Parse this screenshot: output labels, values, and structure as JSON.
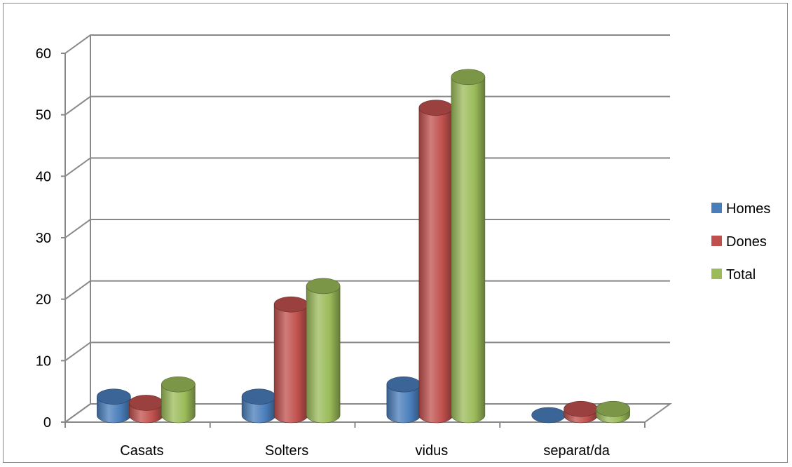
{
  "chart_data": {
    "type": "bar",
    "style": "3d-cylinder",
    "categories": [
      "Casats",
      "Solters",
      "vidus",
      "separat/da"
    ],
    "series": [
      {
        "name": "Homes",
        "values": [
          3,
          3,
          5,
          0
        ],
        "color": "#4a7ebb"
      },
      {
        "name": "Dones",
        "values": [
          2,
          18,
          50,
          1
        ],
        "color": "#c0504d"
      },
      {
        "name": "Total",
        "values": [
          5,
          21,
          55,
          1
        ],
        "color": "#9bbb59"
      }
    ],
    "ylim": [
      0,
      60
    ],
    "yticks": [
      "0",
      "10",
      "20",
      "30",
      "40",
      "50",
      "60"
    ],
    "grid": true,
    "legend_position": "right"
  }
}
